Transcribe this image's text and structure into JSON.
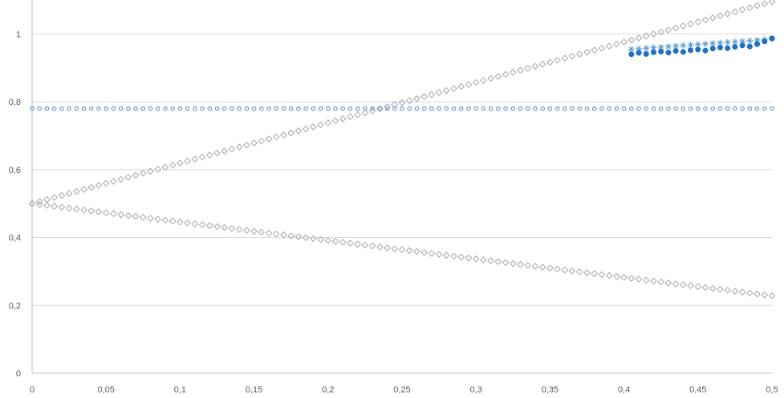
{
  "chart_data": {
    "type": "scatter",
    "title": "",
    "xlabel": "",
    "ylabel": "",
    "xlim": [
      0,
      0.5
    ],
    "ylim": [
      0,
      1.1
    ],
    "grid": "horizontal",
    "legend": "none",
    "x_ticks": [
      "0",
      "0,05",
      "0,1",
      "0,15",
      "0,2",
      "0,25",
      "0,3",
      "0,35",
      "0,4",
      "0,45",
      "0,5"
    ],
    "y_ticks": [
      "0",
      "0,2",
      "0,4",
      "0,6",
      "0,8",
      "1"
    ],
    "series": [
      {
        "marker": "diamond",
        "color": "#a6a6a6",
        "x": {
          "start": 0,
          "end": 0.5,
          "step": 0.005
        },
        "y": {
          "start": 0.5,
          "end": 1.095
        }
      },
      {
        "marker": "diamond",
        "color": "#a6a6a6",
        "x": {
          "start": 0,
          "end": 0.5,
          "step": 0.005
        },
        "y": {
          "start": 0.5,
          "end": 0.228
        }
      },
      {
        "marker": "circle-open",
        "color": "#5b9bd5",
        "x": {
          "start": 0,
          "end": 0.5,
          "step": 0.005
        },
        "y": {
          "start": 0.78,
          "end": 0.78
        }
      },
      {
        "marker": "star",
        "color": "#5b9bd5",
        "x": {
          "start": 0.405,
          "end": 0.5,
          "step": 0.005
        },
        "y": {
          "start": 0.955,
          "end": 0.985
        }
      },
      {
        "marker": "circle",
        "color": "#1f6fc5",
        "x": [
          0.405,
          0.41,
          0.415,
          0.42,
          0.425,
          0.43,
          0.435,
          0.44,
          0.445,
          0.45,
          0.455,
          0.46,
          0.465,
          0.47,
          0.475,
          0.48,
          0.485,
          0.49,
          0.495,
          0.5
        ],
        "y": [
          0.94,
          0.944,
          0.941,
          0.946,
          0.948,
          0.945,
          0.95,
          0.947,
          0.952,
          0.954,
          0.951,
          0.957,
          0.96,
          0.958,
          0.962,
          0.966,
          0.963,
          0.97,
          0.978,
          0.987
        ]
      }
    ]
  }
}
